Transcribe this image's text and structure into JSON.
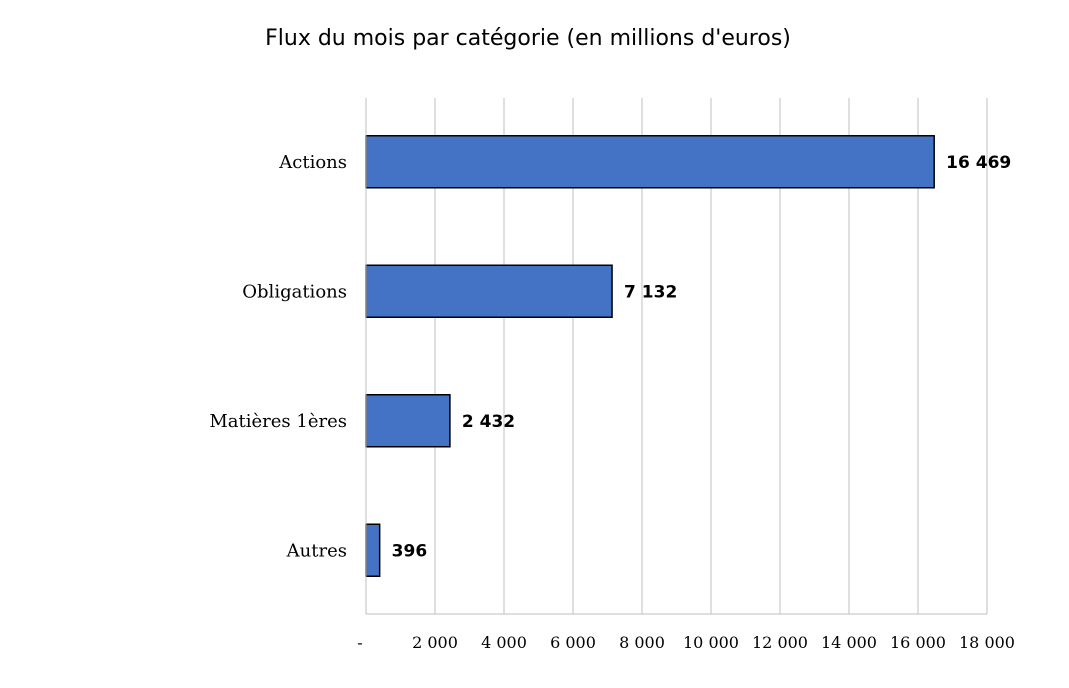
{
  "chart_data": {
    "type": "bar",
    "orientation": "horizontal",
    "title": "Flux du mois par catégorie (en millions d'euros)",
    "xlabel": "",
    "ylabel": "",
    "categories": [
      "Actions",
      "Obligations",
      "Matières 1ères",
      "Autres"
    ],
    "values": [
      16469,
      7132,
      2432,
      396
    ],
    "value_labels": [
      "16 469",
      "7 132",
      "2 432",
      "396"
    ],
    "xlim": [
      0,
      18000
    ],
    "x_ticks": [
      0,
      2000,
      4000,
      6000,
      8000,
      10000,
      12000,
      14000,
      16000,
      18000
    ],
    "x_tick_labels": [
      "-",
      "2 000",
      "4 000",
      "6 000",
      "8 000",
      "10 000",
      "12 000",
      "14 000",
      "16 000",
      "18 000"
    ],
    "grid": "vertical",
    "legend": "none",
    "bar_color": "#4472C4",
    "bar_border_color": "#000000",
    "grid_color": "#BFBFBF"
  }
}
